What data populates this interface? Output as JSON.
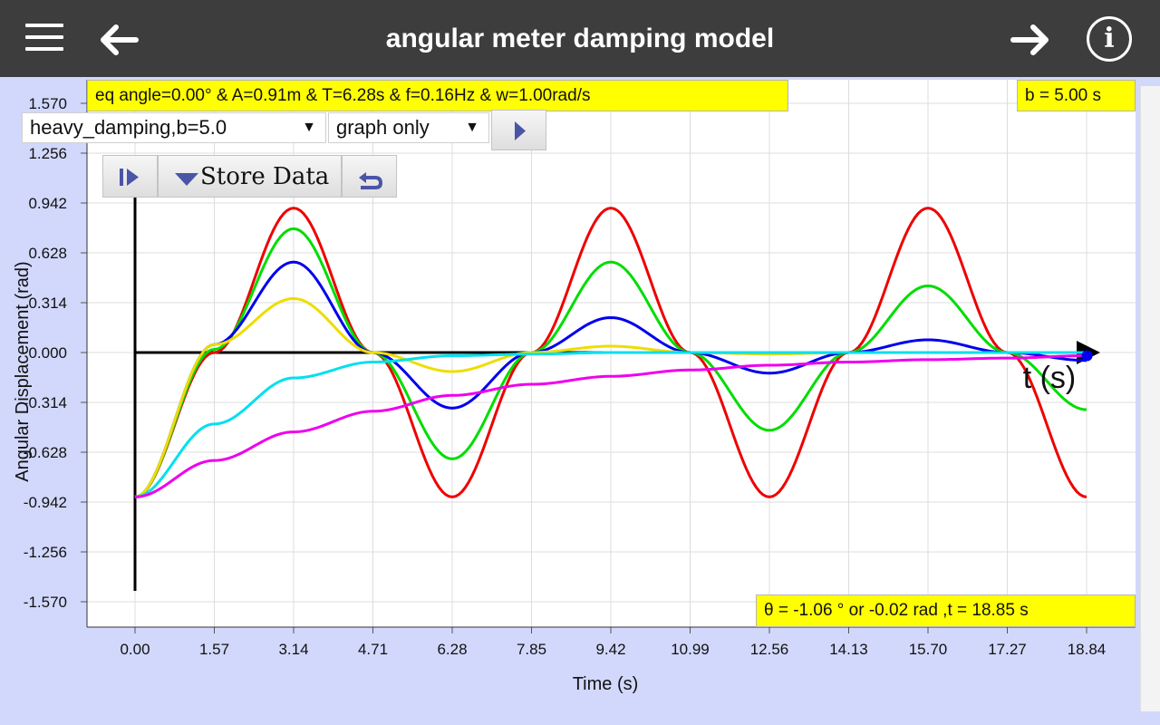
{
  "header": {
    "title": "angular meter damping model"
  },
  "info_panel": {
    "params_text": "eq angle=0.00° & A=0.91m & T=6.28s & f=0.16Hz & w=1.00rad/s",
    "b_text": "b = 5.00 s",
    "readout_text": "θ = -1.06 ° or -0.02 rad ,t = 18.85 s"
  },
  "controls": {
    "case_select": "heavy_damping,b=5.0",
    "view_select": "graph only",
    "store_label": "Store Data"
  },
  "chart_data": {
    "type": "line",
    "xlabel": "Time (s)",
    "ylabel": "Angular Displacement (rad)",
    "axis_arrow_label": "t (s)",
    "xlim": [
      0,
      18.84
    ],
    "ylim": [
      -1.57,
      1.57
    ],
    "x_ticks": [
      "0.00",
      "1.57",
      "3.14",
      "4.71",
      "6.28",
      "7.85",
      "9.42",
      "10.99",
      "12.56",
      "14.13",
      "15.70",
      "17.27",
      "18.84"
    ],
    "y_ticks": [
      "1.570",
      "1.256",
      "0.942",
      "0.628",
      "0.314",
      "0.000",
      "-0.314",
      "-0.628",
      "-0.942",
      "-1.256",
      "-1.570"
    ],
    "grid": true,
    "series": [
      {
        "color": "#ee0000",
        "x": [
          0,
          1.57,
          3.14,
          4.71,
          6.28,
          7.85,
          9.42,
          10.99,
          12.56,
          14.13,
          15.7,
          17.27,
          18.84
        ],
        "y": [
          -0.91,
          0.0,
          0.91,
          0.0,
          -0.91,
          0.0,
          0.91,
          0.0,
          -0.91,
          0.0,
          0.91,
          0.0,
          -0.91
        ]
      },
      {
        "color": "#00dd00",
        "x": [
          0,
          1.57,
          3.14,
          4.71,
          6.28,
          7.85,
          9.42,
          10.99,
          12.56,
          14.13,
          15.7,
          17.27,
          18.84
        ],
        "y": [
          -0.91,
          0.02,
          0.78,
          0.0,
          -0.67,
          0.0,
          0.57,
          0.0,
          -0.49,
          0.0,
          0.42,
          0.0,
          -0.36
        ]
      },
      {
        "color": "#0000ee",
        "x": [
          0,
          1.57,
          3.14,
          4.71,
          6.28,
          7.85,
          9.42,
          10.99,
          12.56,
          14.13,
          15.7,
          17.27,
          18.84
        ],
        "y": [
          -0.91,
          0.05,
          0.57,
          0.0,
          -0.35,
          0.0,
          0.22,
          0.0,
          -0.13,
          0.0,
          0.08,
          0.0,
          -0.05
        ]
      },
      {
        "color": "#eedd00",
        "x": [
          0,
          1.57,
          3.14,
          4.71,
          6.28,
          7.85,
          9.42,
          10.99,
          12.56,
          14.13,
          15.7,
          17.27,
          18.84
        ],
        "y": [
          -0.91,
          0.05,
          0.34,
          0.0,
          -0.12,
          0.0,
          0.04,
          0.0,
          -0.01,
          0.0,
          0.0,
          0.0,
          0.0
        ]
      },
      {
        "color": "#00e0ee",
        "x": [
          0,
          1.57,
          3.14,
          4.71,
          6.28,
          7.85,
          9.42,
          10.99,
          12.56,
          14.13,
          15.7,
          17.27,
          18.84
        ],
        "y": [
          -0.91,
          -0.45,
          -0.16,
          -0.06,
          -0.02,
          -0.01,
          0.0,
          0.0,
          0.0,
          0.0,
          0.0,
          0.0,
          0.0
        ]
      },
      {
        "color": "#ee00ee",
        "x": [
          0,
          1.57,
          3.14,
          4.71,
          6.28,
          7.85,
          9.42,
          10.99,
          12.56,
          14.13,
          15.7,
          17.27,
          18.84
        ],
        "y": [
          -0.91,
          -0.68,
          -0.5,
          -0.37,
          -0.27,
          -0.2,
          -0.15,
          -0.11,
          -0.08,
          -0.06,
          -0.045,
          -0.035,
          -0.02
        ]
      }
    ],
    "marker": {
      "x": 18.85,
      "y": -0.02,
      "color": "#0000ee"
    }
  }
}
